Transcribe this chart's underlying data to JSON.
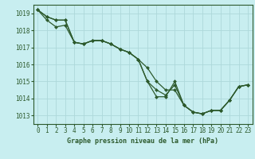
{
  "title": "Graphe pression niveau de la mer (hPa)",
  "background_color": "#c8eef0",
  "grid_color": "#add8da",
  "line_color": "#2d5a2d",
  "marker_color": "#2d5a2d",
  "xlim": [
    -0.5,
    23.5
  ],
  "ylim": [
    1012.5,
    1019.5
  ],
  "yticks": [
    1013,
    1014,
    1015,
    1016,
    1017,
    1018,
    1019
  ],
  "xticks": [
    0,
    1,
    2,
    3,
    4,
    5,
    6,
    7,
    8,
    9,
    10,
    11,
    12,
    13,
    14,
    15,
    16,
    17,
    18,
    19,
    20,
    21,
    22,
    23
  ],
  "series1_y": [
    1019.2,
    1018.8,
    1018.6,
    1018.6,
    1017.3,
    1017.2,
    1017.4,
    1017.4,
    1017.2,
    1016.9,
    1016.7,
    1016.3,
    1015.0,
    1014.1,
    1014.1,
    1015.0,
    1013.6,
    1013.2,
    1013.1,
    1013.3,
    1013.3,
    1013.9,
    1014.7,
    1014.8
  ],
  "series2_y": [
    1019.2,
    1018.6,
    1018.2,
    1018.3,
    1017.3,
    1017.2,
    1017.4,
    1017.4,
    1017.2,
    1016.9,
    1016.7,
    1016.3,
    1015.8,
    1015.0,
    1014.5,
    1014.5,
    1013.6,
    1013.2,
    1013.1,
    1013.3,
    1013.3,
    1013.9,
    1014.7,
    1014.8
  ],
  "series3_y": [
    1019.2,
    1018.8,
    1018.6,
    1018.6,
    1017.3,
    1017.2,
    1017.4,
    1017.4,
    1017.2,
    1016.9,
    1016.7,
    1016.3,
    1015.0,
    1014.5,
    1014.2,
    1014.8,
    1013.6,
    1013.2,
    1013.1,
    1013.3,
    1013.3,
    1013.9,
    1014.7,
    1014.8
  ],
  "tick_fontsize": 5.5,
  "label_fontsize": 6.0
}
